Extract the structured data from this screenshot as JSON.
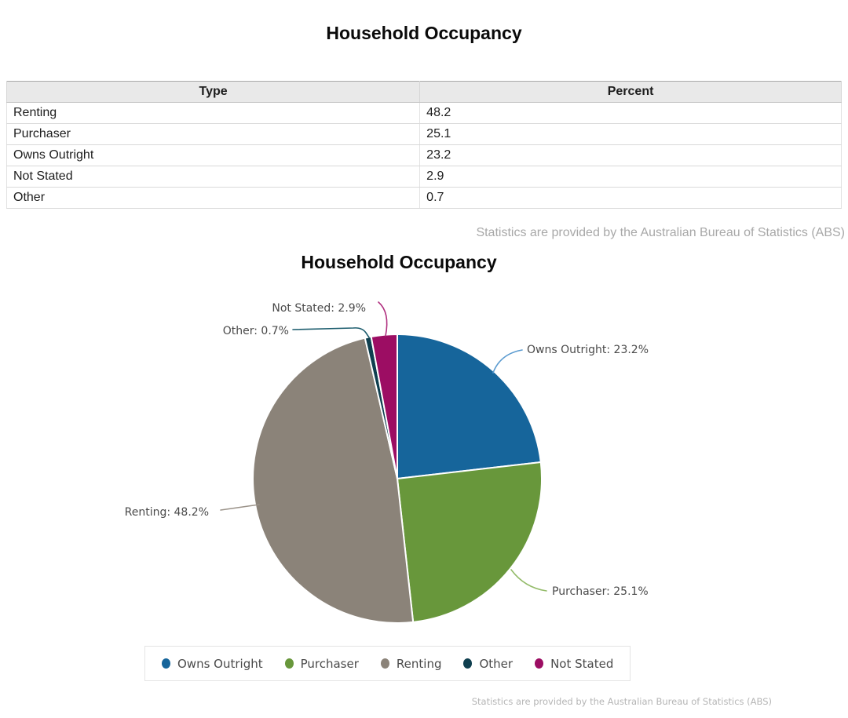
{
  "page": {
    "title": "Household Occupancy"
  },
  "table": {
    "headers": [
      "Type",
      "Percent"
    ],
    "rows": [
      {
        "type": "Renting",
        "percent": "48.2"
      },
      {
        "type": "Purchaser",
        "percent": "25.1"
      },
      {
        "type": "Owns Outright",
        "percent": "23.2"
      },
      {
        "type": "Not Stated",
        "percent": "2.9"
      },
      {
        "type": "Other",
        "percent": "0.7"
      }
    ]
  },
  "attribution": {
    "top": "Statistics are provided by the Australian Bureau of Statistics (ABS)",
    "bottom": "Statistics are provided by the Australian Bureau of Statistics (ABS)"
  },
  "chart_data": {
    "type": "pie",
    "title": "Household Occupancy",
    "start_angle_deg": 0,
    "direction": "clockwise",
    "legend_position": "bottom",
    "slices": [
      {
        "label": "Owns Outright",
        "value": 23.2,
        "color": "#16659b",
        "leader_color": "#5b9bd0",
        "callout": "Owns Outright: 23.2%"
      },
      {
        "label": "Purchaser",
        "value": 25.1,
        "color": "#68973b",
        "leader_color": "#93bb69",
        "callout": "Purchaser: 25.1%"
      },
      {
        "label": "Renting",
        "value": 48.2,
        "color": "#8b8379",
        "leader_color": "#9a9289",
        "callout": "Renting: 48.2%"
      },
      {
        "label": "Other",
        "value": 0.7,
        "color": "#0f3f4f",
        "leader_color": "#1d5d6e",
        "callout": "Other: 0.7%"
      },
      {
        "label": "Not Stated",
        "value": 2.9,
        "color": "#9c0d63",
        "leader_color": "#b0307f",
        "callout": "Not Stated: 2.9%"
      }
    ],
    "legend": [
      "Owns Outright",
      "Purchaser",
      "Renting",
      "Other",
      "Not Stated"
    ]
  }
}
